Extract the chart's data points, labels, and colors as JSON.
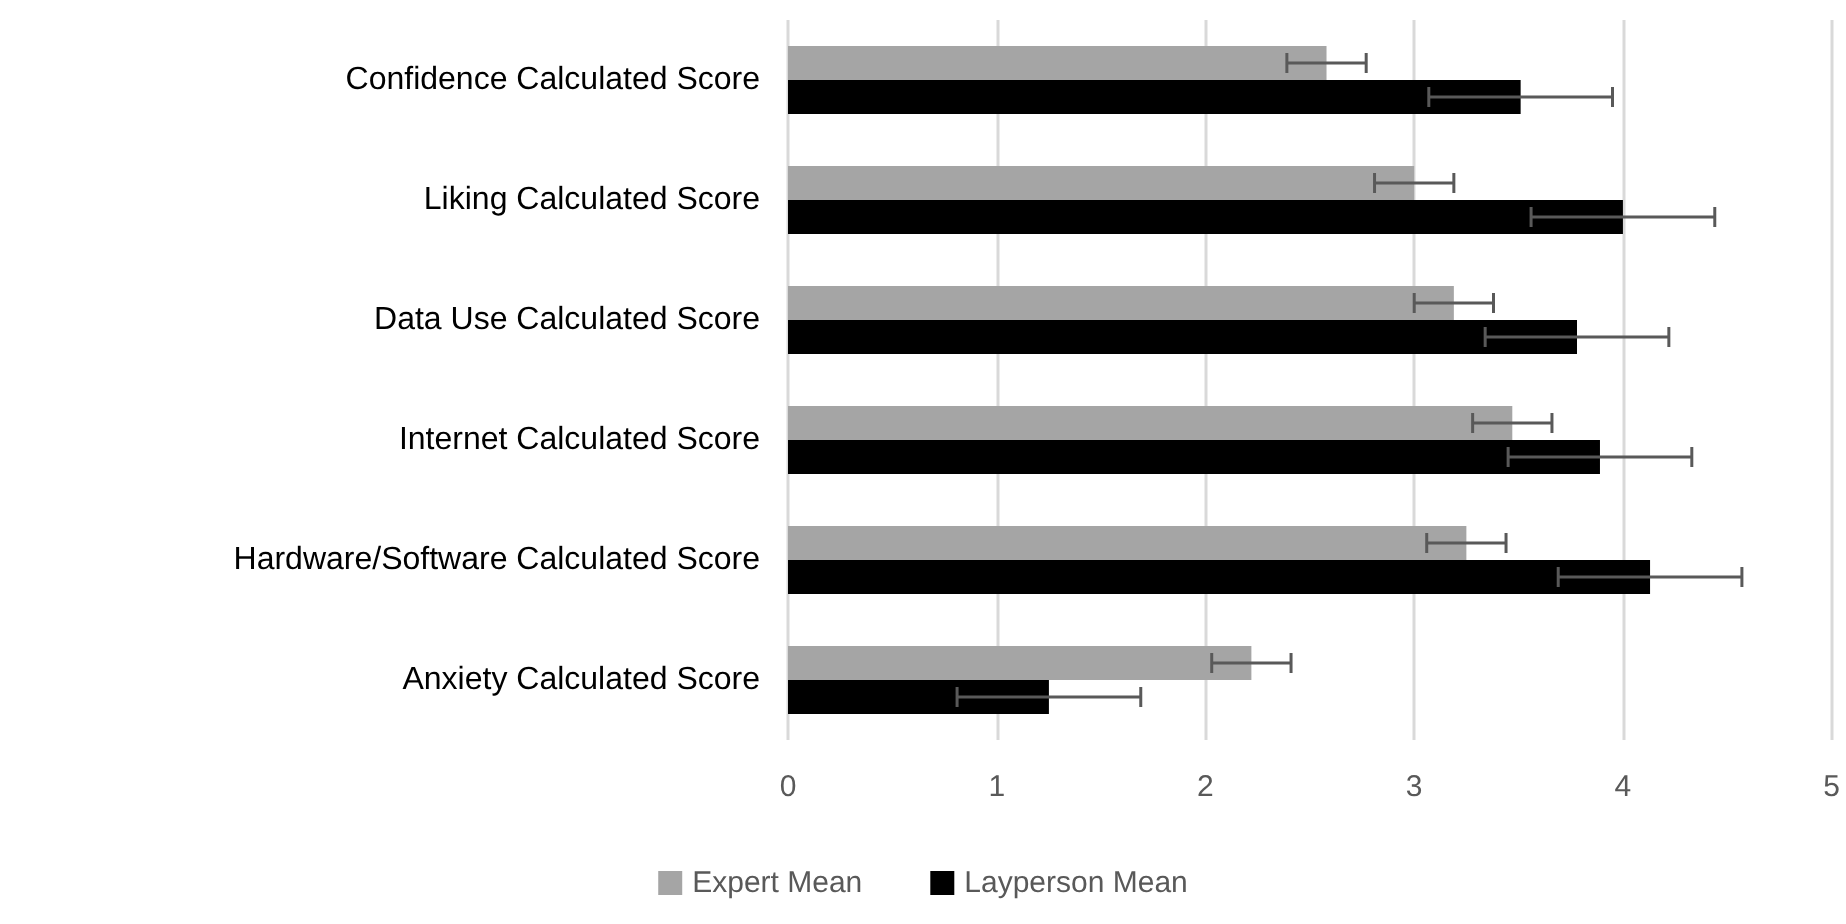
{
  "chart_data": {
    "type": "bar",
    "orientation": "horizontal",
    "categories": [
      "Confidence Calculated Score",
      "Liking Calculated Score",
      "Data Use Calculated Score",
      "Internet Calculated Score",
      "Hardware/Software Calculated Score",
      "Anxiety Calculated Score"
    ],
    "series": [
      {
        "name": "Expert Mean",
        "color": "#a5a5a5",
        "values": [
          2.58,
          3.0,
          3.19,
          3.47,
          3.25,
          2.22
        ],
        "errors": [
          0.19,
          0.19,
          0.19,
          0.19,
          0.19,
          0.19
        ]
      },
      {
        "name": "Layperson Mean",
        "color": "#000000",
        "values": [
          3.51,
          4.0,
          3.78,
          3.89,
          4.13,
          1.25
        ],
        "errors": [
          0.44,
          0.44,
          0.44,
          0.44,
          0.44,
          0.44
        ]
      }
    ],
    "xlim": [
      0,
      5
    ],
    "xticks": [
      0,
      1,
      2,
      3,
      4,
      5
    ],
    "grid": "x",
    "legend": "bottom"
  }
}
